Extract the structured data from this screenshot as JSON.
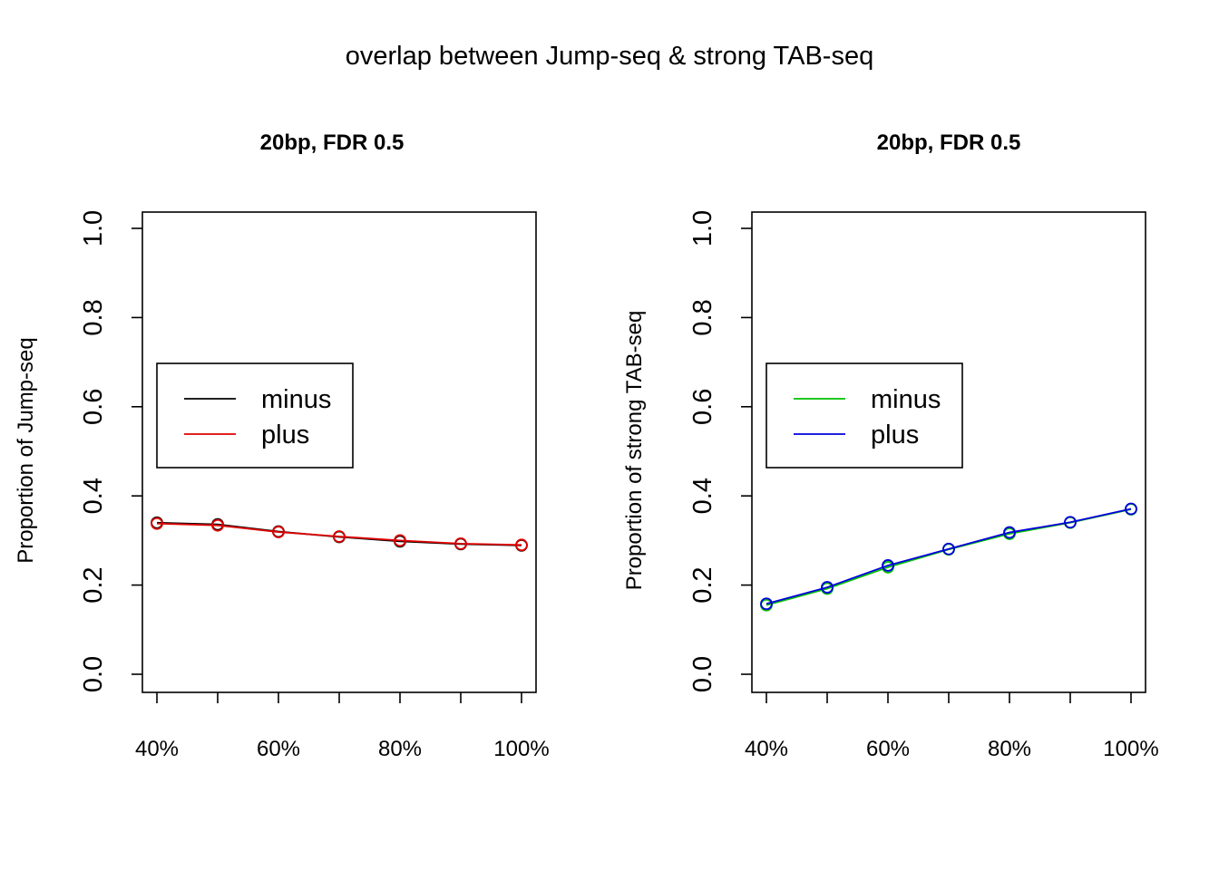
{
  "title": "overlap between Jump-seq & strong TAB-seq",
  "chart_data": [
    {
      "type": "line",
      "title": "20bp, FDR 0.5",
      "xlabel": "",
      "ylabel": "Proportion of Jump-seq",
      "x": [
        40,
        50,
        60,
        70,
        80,
        90,
        100
      ],
      "xticks": [
        40,
        50,
        60,
        70,
        80,
        90,
        100
      ],
      "xtick_labels": [
        "40%",
        "",
        "60%",
        "",
        "80%",
        "",
        "100%"
      ],
      "ylim": [
        0,
        1
      ],
      "yticks": [
        "0.0",
        "0.2",
        "0.4",
        "0.6",
        "0.8",
        "1.0"
      ],
      "legend_position": "left",
      "grid": false,
      "series": [
        {
          "name": "minus",
          "color": "#000000",
          "values": [
            0.34,
            0.336,
            0.32,
            0.308,
            0.298,
            0.292,
            0.289
          ]
        },
        {
          "name": "plus",
          "color": "#DF0000",
          "values": [
            0.338,
            0.334,
            0.319,
            0.309,
            0.3,
            0.293,
            0.29
          ]
        }
      ]
    },
    {
      "type": "line",
      "title": "20bp, FDR 0.5",
      "xlabel": "",
      "ylabel": "Proportion of strong TAB-seq",
      "x": [
        40,
        50,
        60,
        70,
        80,
        90,
        100
      ],
      "xticks": [
        40,
        50,
        60,
        70,
        80,
        90,
        100
      ],
      "xtick_labels": [
        "40%",
        "",
        "60%",
        "",
        "80%",
        "",
        "100%"
      ],
      "ylim": [
        0,
        1
      ],
      "yticks": [
        "0.0",
        "0.2",
        "0.4",
        "0.6",
        "0.8",
        "1.0"
      ],
      "legend_position": "left",
      "grid": false,
      "series": [
        {
          "name": "minus",
          "color": "#00C000",
          "values": [
            0.155,
            0.192,
            0.24,
            0.28,
            0.315,
            0.34,
            0.37
          ]
        },
        {
          "name": "plus",
          "color": "#0000DD",
          "values": [
            0.158,
            0.195,
            0.244,
            0.281,
            0.318,
            0.341,
            0.371
          ]
        }
      ]
    }
  ]
}
